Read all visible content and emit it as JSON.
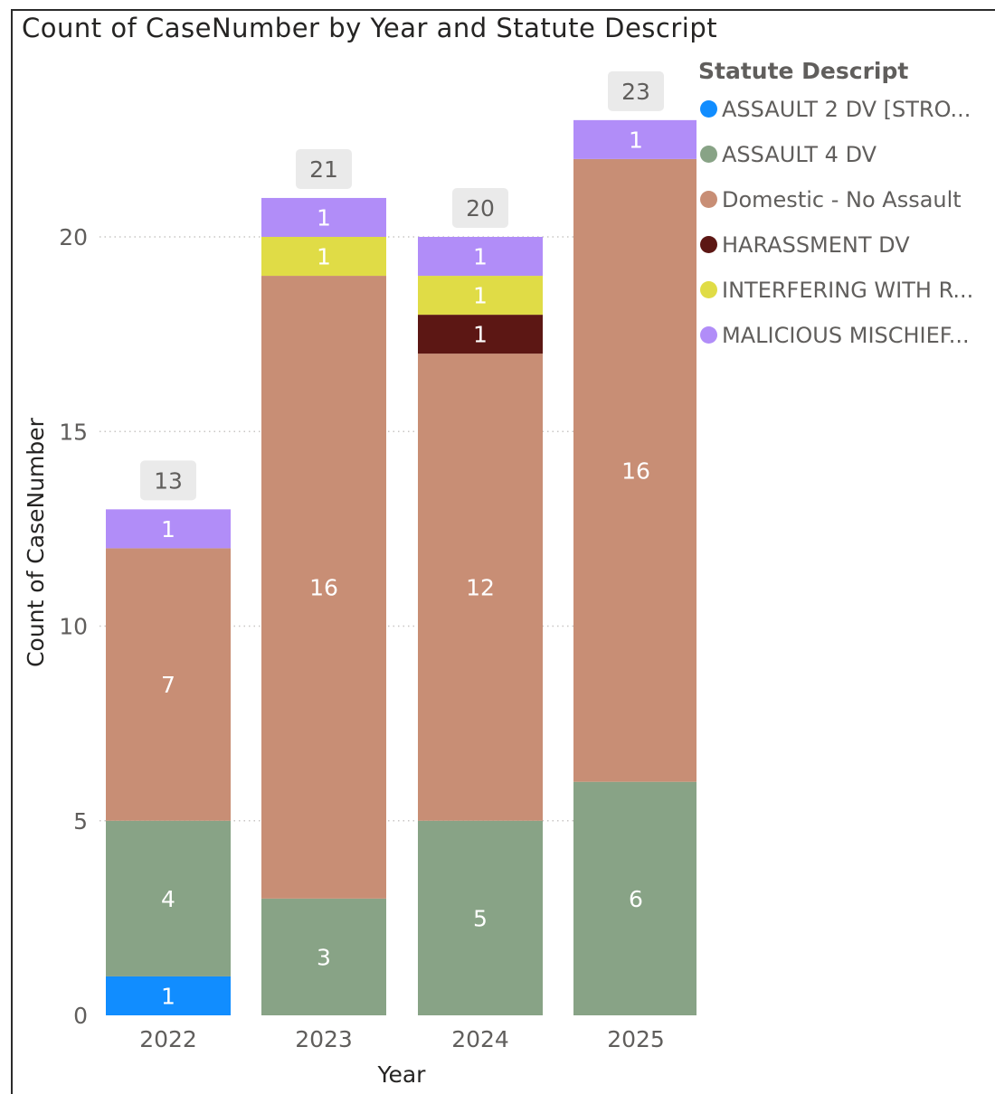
{
  "chart_data": {
    "type": "bar",
    "stacked": true,
    "title": "Count of CaseNumber by Year and Statute Descript",
    "xlabel": "Year",
    "ylabel": "Count of CaseNumber",
    "categories": [
      "2022",
      "2023",
      "2024",
      "2025"
    ],
    "ylim": [
      0,
      25
    ],
    "yticks": [
      0,
      5,
      10,
      15,
      20
    ],
    "grid": "horizontal-dotted",
    "legend_title": "Statute Descript",
    "legend_position": "right",
    "totals": [
      13,
      21,
      20,
      23
    ],
    "series": [
      {
        "name": "ASSAULT 2 DV [STRO...",
        "color": "#118DFF",
        "values": [
          1,
          0,
          0,
          0
        ]
      },
      {
        "name": "ASSAULT 4 DV",
        "color": "#88A386",
        "values": [
          4,
          3,
          5,
          6
        ]
      },
      {
        "name": "Domestic - No Assault",
        "color": "#C88E75",
        "values": [
          7,
          16,
          12,
          16
        ]
      },
      {
        "name": "HARASSMENT DV",
        "color": "#5C1714",
        "values": [
          0,
          0,
          1,
          0
        ]
      },
      {
        "name": "INTERFERING WITH R...",
        "color": "#E0DC46",
        "values": [
          0,
          1,
          1,
          0
        ]
      },
      {
        "name": "MALICIOUS MISCHIEF...",
        "color": "#B18DF8",
        "values": [
          1,
          1,
          1,
          1
        ]
      }
    ]
  }
}
